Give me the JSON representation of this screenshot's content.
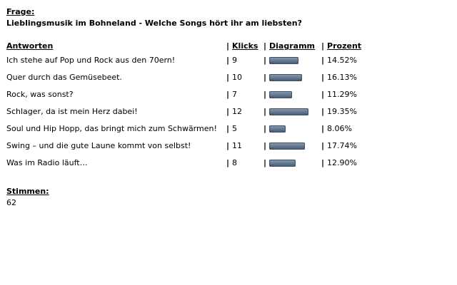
{
  "poll": {
    "question_label": "Frage:",
    "question": "Lieblingsmusik im Bohneland - Welche Songs hört ihr am liebsten?",
    "headers": {
      "answers": "Antworten",
      "clicks": "Klicks",
      "diagram": "Diagramm",
      "percent": "Prozent"
    },
    "separator": "|",
    "rows": [
      {
        "answer": "Ich stehe auf Pop und Rock aus den 70ern!",
        "clicks": "9",
        "percent": "14.52%",
        "share": 0.1452
      },
      {
        "answer": "Quer durch das Gemüsebeet.",
        "clicks": "10",
        "percent": "16.13%",
        "share": 0.1613
      },
      {
        "answer": "Rock, was sonst?",
        "clicks": "7",
        "percent": "11.29%",
        "share": 0.1129
      },
      {
        "answer": "Schlager, da ist mein Herz dabei!",
        "clicks": "12",
        "percent": "19.35%",
        "share": 0.1935
      },
      {
        "answer": "Soul und Hip Hopp, das bringt mich zum Schwärmen!",
        "clicks": "5",
        "percent": "8.06%",
        "share": 0.0806
      },
      {
        "answer": "Swing – und die gute Laune kommt von selbst!",
        "clicks": "11",
        "percent": "17.74%",
        "share": 0.1774
      },
      {
        "answer": "Was im Radio läuft…",
        "clicks": "8",
        "percent": "12.90%",
        "share": 0.129
      }
    ],
    "votes_label": "Stimmen:",
    "votes_total": "62",
    "bar_color": "#6a7d95"
  }
}
